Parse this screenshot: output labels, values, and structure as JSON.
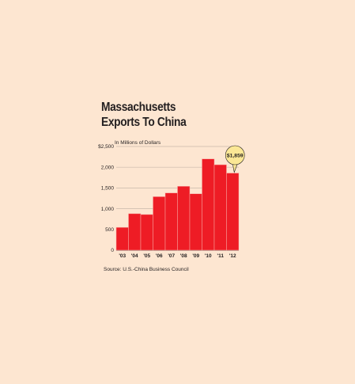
{
  "title_lines": [
    "Massachusetts",
    "Exports To China"
  ],
  "colors": {
    "background": "#fde6d1",
    "bar": "#ee1c25",
    "bar_edge": "#f7a9a3",
    "gridline": "#c9b8aa",
    "callout_fill": "#fbe795",
    "text": "#231f20"
  },
  "chart_data": {
    "type": "bar",
    "unit_label": "In Millions of Dollars",
    "categories": [
      "'03",
      "'04",
      "'05",
      "'06",
      "'07",
      "'08",
      "'09",
      "'10",
      "'11",
      "'12"
    ],
    "values": [
      550,
      880,
      860,
      1290,
      1380,
      1540,
      1360,
      2200,
      2060,
      1859
    ],
    "ylim": [
      0,
      2500
    ],
    "yticks": [
      0,
      500,
      1000,
      1500,
      2000,
      2500
    ],
    "ytick_labels": [
      "0",
      "500",
      "1,000",
      "1,500",
      "2,000",
      "$2,500"
    ],
    "grid": true,
    "callout": {
      "category": "'12",
      "label": "$1,859"
    },
    "source": "Source: U.S.-China Business Council"
  }
}
